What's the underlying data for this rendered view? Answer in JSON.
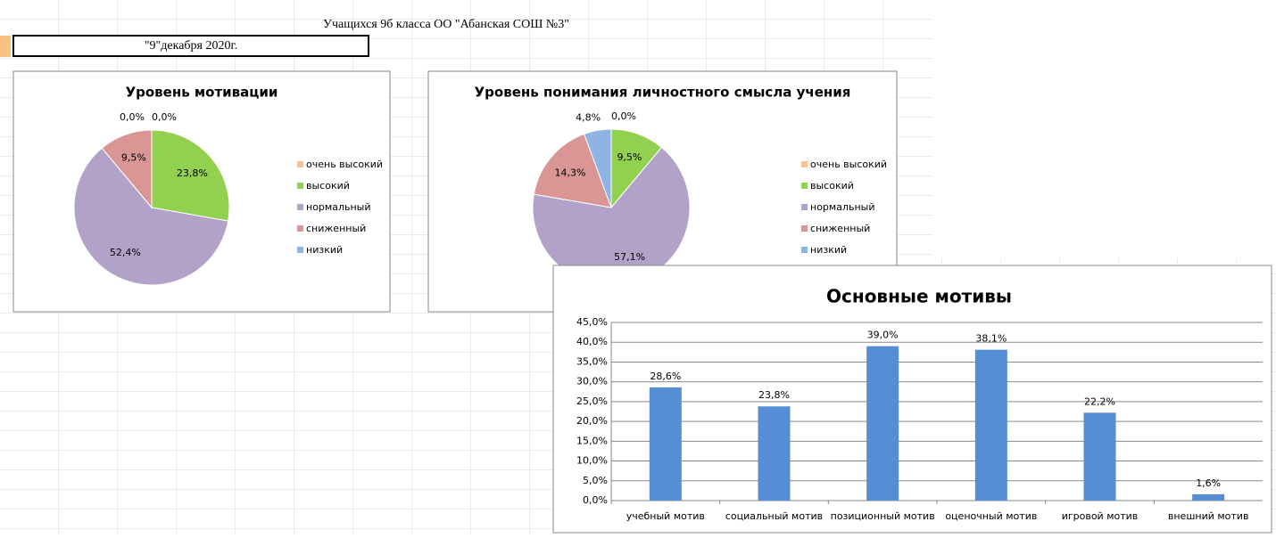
{
  "sheet": {
    "subtitle": "Учащихся 9б класса ОО \"Абанская СОШ №3\"",
    "date": "\"9\"декабря 2020г."
  },
  "chart_data": [
    {
      "type": "pie",
      "title": "Уровень мотивации",
      "categories": [
        "очень высокий",
        "высокий",
        "нормальный",
        "сниженный",
        "низкий"
      ],
      "values": [
        0,
        23.8,
        52.4,
        9.5,
        0
      ],
      "value_labels": [
        "0,0%",
        "23,8%",
        "52,4%",
        "9,5%",
        "0,0%"
      ],
      "colors": [
        "#fac090",
        "#92d050",
        "#b3a2c7",
        "#d99694",
        "#8eb4e3"
      ],
      "legend": "right"
    },
    {
      "type": "pie",
      "title": "Уровень понимания личностного смысла учения",
      "categories": [
        "очень высокий",
        "высокий",
        "нормальный",
        "сниженный",
        "низкий"
      ],
      "values": [
        0,
        9.5,
        57.1,
        14.3,
        4.8
      ],
      "value_labels": [
        "0,0%",
        "9,5%",
        "57,1%",
        "14,3%",
        "4,8%"
      ],
      "colors": [
        "#fac090",
        "#92d050",
        "#b3a2c7",
        "#d99694",
        "#8eb4e3"
      ],
      "legend": "right"
    },
    {
      "type": "bar",
      "title": "Основные мотивы",
      "categories": [
        "учебный мотив",
        "социальный мотив",
        "позиционный мотив",
        "оценочный мотив",
        "игровой мотив",
        "внешний мотив"
      ],
      "values": [
        28.6,
        23.8,
        39.0,
        38.1,
        22.2,
        1.6
      ],
      "value_labels": [
        "28,6%",
        "23,8%",
        "39,0%",
        "38,1%",
        "22,2%",
        "1,6%"
      ],
      "color": "#558ed5",
      "ylim": [
        0,
        45
      ],
      "yticks": [
        {
          "value": 0,
          "label": "0,0%"
        },
        {
          "value": 5,
          "label": "5,0%"
        },
        {
          "value": 10,
          "label": "10,0%"
        },
        {
          "value": 15,
          "label": "15,0%"
        },
        {
          "value": 20,
          "label": "20,0%"
        },
        {
          "value": 25,
          "label": "25,0%"
        },
        {
          "value": 30,
          "label": "30,0%"
        },
        {
          "value": 35,
          "label": "35,0%"
        },
        {
          "value": 40,
          "label": "40,0%"
        },
        {
          "value": 45,
          "label": "45,0%"
        }
      ],
      "grid": true
    }
  ]
}
